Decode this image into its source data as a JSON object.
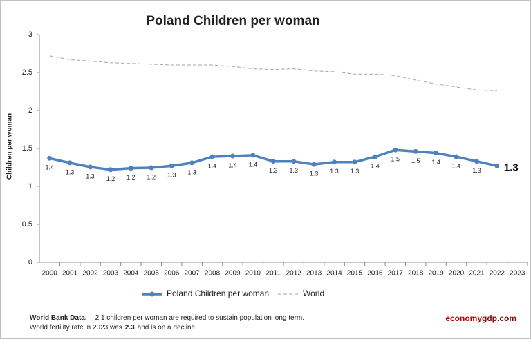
{
  "chart_data": {
    "type": "line",
    "title": "Poland Children per woman",
    "y_label": "Children per woman",
    "categories": [
      "2000",
      "2001",
      "2002",
      "2003",
      "2004",
      "2005",
      "2006",
      "2007",
      "2008",
      "2009",
      "2010",
      "2011",
      "2012",
      "2013",
      "2014",
      "2015",
      "2016",
      "2017",
      "2018",
      "2019",
      "2020",
      "2021",
      "2022",
      "2023"
    ],
    "series": [
      {
        "name": "Poland Children per woman",
        "color": "#4f81bd",
        "style": "solid",
        "values": [
          1.37,
          1.31,
          1.255,
          1.22,
          1.24,
          1.245,
          1.27,
          1.31,
          1.39,
          1.4,
          1.41,
          1.33,
          1.33,
          1.29,
          1.32,
          1.32,
          1.39,
          1.48,
          1.46,
          1.44,
          1.39,
          1.33,
          1.27,
          null
        ],
        "value_labels": [
          "1.4",
          "1.3",
          "1.3",
          "1.2",
          "1.2",
          "1.2",
          "1.3",
          "1.3",
          "1.4",
          "1.4",
          "1.4",
          "1.3",
          "1.3",
          "1.3",
          "1.3",
          "1.3",
          "1.4",
          "1.5",
          "1.5",
          "1.4",
          "1.4",
          "1.3",
          "1.3",
          null
        ]
      },
      {
        "name": "World",
        "color": "#a6a6a6",
        "style": "dashed",
        "values": [
          2.72,
          2.67,
          2.65,
          2.63,
          2.62,
          2.61,
          2.6,
          2.6,
          2.6,
          2.58,
          2.55,
          2.54,
          2.55,
          2.52,
          2.51,
          2.48,
          2.48,
          2.46,
          2.4,
          2.35,
          2.31,
          2.27,
          2.26,
          null
        ]
      }
    ],
    "ylim": [
      0,
      3
    ],
    "yticks": [
      0,
      0.5,
      1,
      1.5,
      2,
      2.5,
      3
    ],
    "grid": false,
    "legend": "bottom",
    "footnote": [
      [
        {
          "text": "World Bank Data.",
          "bold": true
        },
        {
          "text": "2.1 children per woman are required to sustain population long term.",
          "bold": false
        }
      ],
      [
        {
          "text": "World fertility rate in 2023 was",
          "bold": false
        },
        {
          "text": "2.3",
          "bold": true
        },
        {
          "text": "and is on a decline.",
          "bold": false
        }
      ]
    ],
    "brand": [
      {
        "text": "economy",
        "color": "#c00000"
      },
      {
        "text": "gdp.com",
        "color": "#7f1010"
      }
    ]
  }
}
